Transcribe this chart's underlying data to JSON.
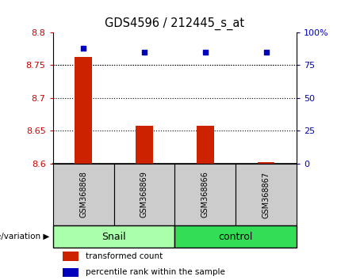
{
  "title": "GDS4596 / 212445_s_at",
  "samples": [
    "GSM368868",
    "GSM368869",
    "GSM368866",
    "GSM368867"
  ],
  "groups": [
    "Snail",
    "Snail",
    "control",
    "control"
  ],
  "group_labels": [
    "Snail",
    "control"
  ],
  "snail_color": "#AAFFAA",
  "control_color": "#33DD55",
  "transformed_counts": [
    8.762,
    8.658,
    8.658,
    8.602
  ],
  "percentile_ranks": [
    88,
    85,
    85,
    85
  ],
  "ylim_left": [
    8.6,
    8.8
  ],
  "ylim_right": [
    0,
    100
  ],
  "yticks_left": [
    8.6,
    8.65,
    8.7,
    8.75,
    8.8
  ],
  "yticks_right": [
    0,
    25,
    50,
    75,
    100
  ],
  "ytick_labels_left": [
    "8.6",
    "8.65",
    "8.7",
    "8.75",
    "8.8"
  ],
  "ytick_labels_right": [
    "0",
    "25",
    "50",
    "75",
    "100%"
  ],
  "bar_color": "#CC2200",
  "dot_color": "#0000BB",
  "left_tick_color": "#CC0000",
  "right_tick_color": "#0000BB",
  "legend_items": [
    "transformed count",
    "percentile rank within the sample"
  ],
  "genotype_label": "genotype/variation"
}
